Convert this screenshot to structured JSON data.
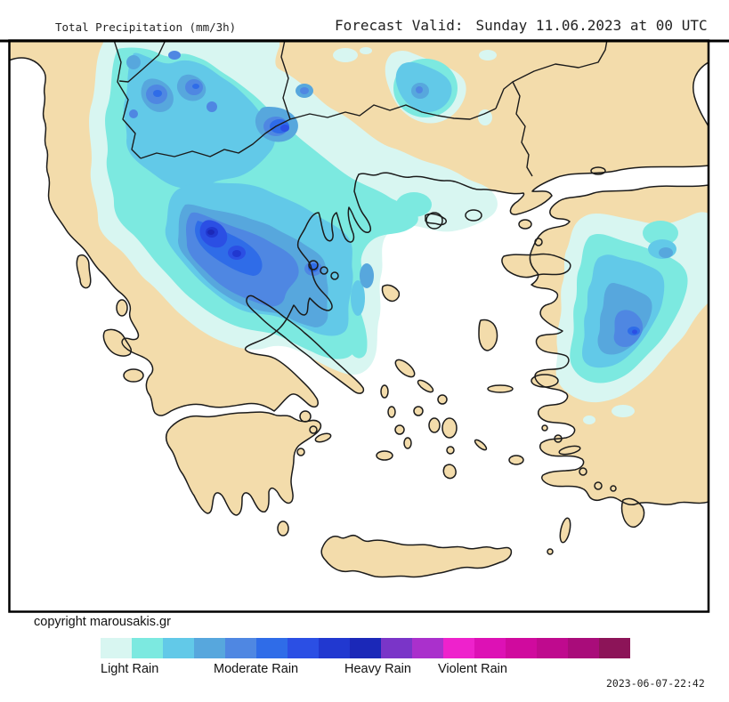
{
  "header": {
    "title": "Total Precipitation (mm/3h)",
    "forecast_label": "Forecast Valid:",
    "forecast_value": "Sunday 11.06.2023 at 00 UTC"
  },
  "map": {
    "copyright": "copyright marousakis.gr",
    "land_regions": [
      "Greece",
      "Albania",
      "North Macedonia",
      "Bulgaria",
      "Turkey",
      "Crete",
      "Peloponnese",
      "Euboea",
      "Aegean islands"
    ]
  },
  "legend": {
    "labels": [
      "Light Rain",
      "Moderate Rain",
      "Heavy Rain",
      "Violent Rain"
    ],
    "colors": [
      "#d8f6f1",
      "#7ce9e0",
      "#62c9e8",
      "#57a7dd",
      "#4f87e2",
      "#2f6ce8",
      "#2b4fe4",
      "#2138d0",
      "#1b28b8",
      "#7a35c8",
      "#aa30cc",
      "#ee22cc",
      "#dd11b5",
      "#d00a9e",
      "#bf0a8e",
      "#a90c7a",
      "#8c1458"
    ]
  },
  "timestamp": "2023-06-07-22:42",
  "colors": {
    "land": "#f3dcab",
    "sea": "#ffffff",
    "coastline": "#1b1b1b",
    "frame": "#000000",
    "background": "#ffffff"
  }
}
